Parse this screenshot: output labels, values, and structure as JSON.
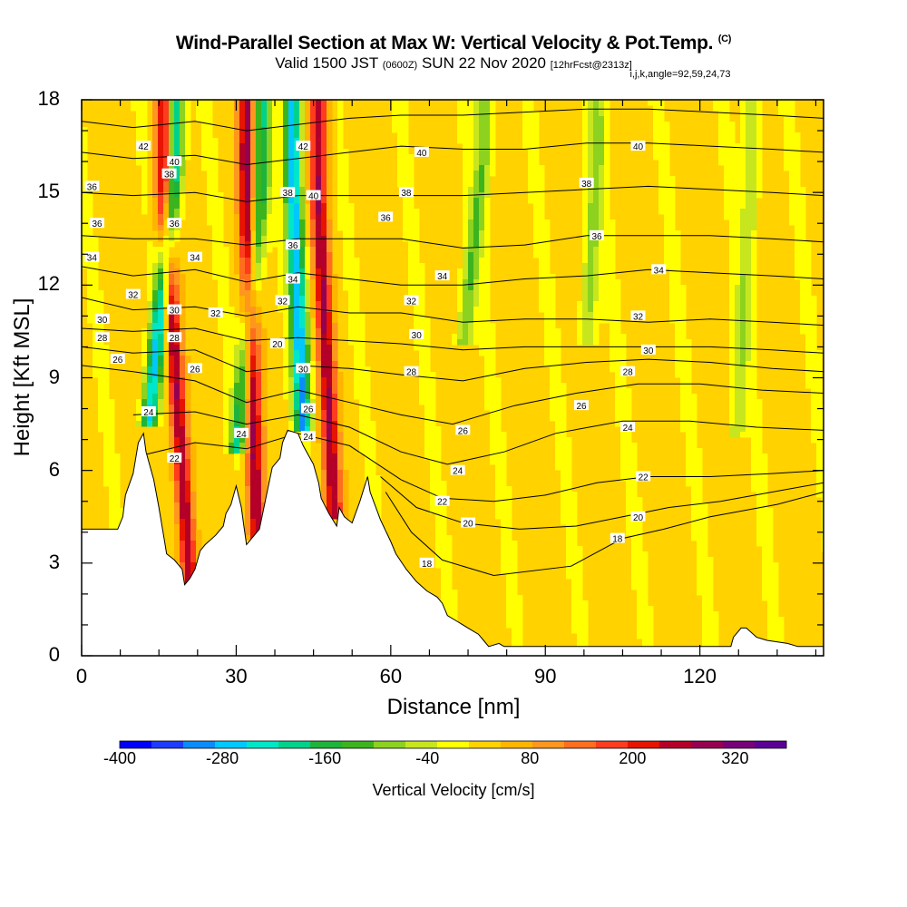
{
  "header": {
    "title": "Wind-Parallel Section at Max W: Vertical Velocity & Pot.Temp.",
    "title_mark": "(C)",
    "valid_prefix": "Valid 1500 JST",
    "valid_utc": "(0600Z)",
    "valid_date": "SUN 22 Nov 2020",
    "forecast": "[12hrFcst@2313z]",
    "indices": "i,j,k,angle=92,59,24,73"
  },
  "chart_data": {
    "type": "heatmap",
    "xlabel": "Distance [nm]",
    "ylabel": "Height [Kft MSL]",
    "xlim": [
      0,
      144
    ],
    "ylim": [
      0,
      18
    ],
    "x_ticks": [
      "0",
      "30",
      "60",
      "90",
      "120"
    ],
    "y_ticks": [
      "0",
      "3",
      "6",
      "9",
      "12",
      "15",
      "18"
    ],
    "colorbar": {
      "label": "Vertical Velocity [cm/s]",
      "tick_labels": [
        "-400",
        "-280",
        "-160",
        "-40",
        "80",
        "200",
        "320"
      ],
      "tick_values": [
        -400,
        -280,
        -160,
        -40,
        80,
        200,
        320
      ],
      "min": -400,
      "max": 380,
      "colors": [
        "#0000ff",
        "#1e3cff",
        "#0a8cff",
        "#00c8ff",
        "#00e6c8",
        "#00d28c",
        "#1eb43c",
        "#3cb41e",
        "#8cd21e",
        "#c8e61e",
        "#ffff00",
        "#ffd200",
        "#ffb400",
        "#ff961e",
        "#ff6e1e",
        "#ff3c1e",
        "#e61400",
        "#b40028",
        "#960050",
        "#780078",
        "#5a0096"
      ]
    },
    "terrain_profile": {
      "distance_nm": [
        0,
        7,
        8,
        8.5,
        10,
        11,
        12,
        12.5,
        14,
        15,
        16,
        16.5,
        18,
        19.5,
        20,
        21,
        22,
        23,
        24,
        26,
        27.5,
        28,
        29,
        30,
        31,
        31.5,
        32,
        34.5,
        35.5,
        36,
        37,
        38.5,
        39,
        40,
        42,
        43,
        45,
        46,
        46.5,
        48,
        49.5,
        50,
        51,
        52.5,
        54,
        55.5,
        56,
        58,
        60,
        61,
        63,
        65,
        67,
        69,
        70,
        71,
        73,
        75,
        77,
        78,
        79,
        81,
        82,
        126,
        126.5,
        128,
        129,
        131,
        133,
        137,
        139,
        141,
        144
      ],
      "height_kft": [
        4.1,
        4.1,
        4.5,
        5.2,
        5.9,
        6.9,
        7.2,
        6.6,
        5.7,
        4.8,
        3.8,
        3.3,
        3.1,
        2.8,
        2.3,
        2.5,
        2.8,
        3.4,
        3.6,
        3.9,
        4.2,
        4.6,
        4.9,
        5.5,
        4.8,
        4.2,
        3.6,
        4.1,
        4.9,
        5.3,
        6.1,
        6.4,
        6.9,
        7.3,
        7.2,
        6.8,
        6.2,
        5.6,
        5.1,
        4.6,
        4.2,
        4.8,
        4.5,
        4.3,
        5.0,
        5.8,
        5.3,
        4.4,
        3.7,
        3.3,
        2.8,
        2.4,
        2.1,
        1.9,
        1.7,
        1.3,
        1.1,
        0.9,
        0.7,
        0.5,
        0.3,
        0.4,
        0.3,
        0.3,
        0.6,
        0.9,
        0.9,
        0.6,
        0.5,
        0.4,
        0.3,
        0.3,
        0.3
      ]
    },
    "updraft_bands": [
      {
        "x_bottom": 21,
        "x_top": 16,
        "y_bottom": 2.4,
        "value": 260
      },
      {
        "x_bottom": 34,
        "x_top": 32,
        "y_bottom": 3.8,
        "value": 260
      },
      {
        "x_bottom": 49,
        "x_top": 46,
        "y_bottom": 4.4,
        "value": 240
      }
    ],
    "downdraft_bands": [
      {
        "x_bottom": 13,
        "x_top": 18,
        "y_bottom": 7.5,
        "value": -280
      },
      {
        "x_bottom": 30,
        "x_top": 35,
        "y_bottom": 6.5,
        "value": -200
      },
      {
        "x_bottom": 43,
        "x_top": 41,
        "y_bottom": 7.3,
        "value": -300
      },
      {
        "x_bottom": 74,
        "x_top": 78,
        "y_bottom": 10.0,
        "value": -120
      },
      {
        "x_bottom": 98,
        "x_top": 100,
        "y_bottom": 10.0,
        "value": -100
      },
      {
        "x_bottom": 127,
        "x_top": 130,
        "y_bottom": 7.0,
        "value": -80
      }
    ],
    "isentropes": [
      {
        "theta": 18,
        "pts": [
          [
            59,
            5.3
          ],
          [
            64,
            4.0
          ],
          [
            70,
            3.1
          ],
          [
            80,
            2.6
          ],
          [
            95,
            2.9
          ],
          [
            105,
            3.8
          ],
          [
            113,
            4.1
          ],
          [
            122,
            4.5
          ],
          [
            135,
            4.9
          ],
          [
            144,
            5.3
          ]
        ]
      },
      {
        "theta": 20,
        "pts": [
          [
            58,
            5.8
          ],
          [
            65,
            4.8
          ],
          [
            74,
            4.3
          ],
          [
            85,
            4.1
          ],
          [
            96,
            4.2
          ],
          [
            105,
            4.5
          ],
          [
            114,
            4.8
          ],
          [
            124,
            5.0
          ],
          [
            134,
            5.3
          ],
          [
            144,
            5.6
          ]
        ]
      },
      {
        "theta": 22,
        "pts": [
          [
            12,
            6.5
          ],
          [
            22,
            6.9
          ],
          [
            32,
            6.7
          ],
          [
            42,
            7.2
          ],
          [
            52,
            6.8
          ],
          [
            62,
            5.7
          ],
          [
            70,
            5.1
          ],
          [
            80,
            5.0
          ],
          [
            90,
            5.2
          ],
          [
            100,
            5.6
          ],
          [
            110,
            5.8
          ],
          [
            122,
            5.8
          ],
          [
            134,
            5.9
          ],
          [
            144,
            6.0
          ]
        ]
      },
      {
        "theta": 24,
        "pts": [
          [
            10,
            7.8
          ],
          [
            22,
            7.9
          ],
          [
            32,
            7.5
          ],
          [
            42,
            7.8
          ],
          [
            52,
            7.4
          ],
          [
            62,
            6.6
          ],
          [
            71,
            6.2
          ],
          [
            82,
            6.6
          ],
          [
            92,
            7.2
          ],
          [
            105,
            7.6
          ],
          [
            118,
            7.6
          ],
          [
            131,
            7.4
          ],
          [
            144,
            7.3
          ]
        ]
      },
      {
        "theta": 26,
        "pts": [
          [
            0,
            9.4
          ],
          [
            10,
            9.2
          ],
          [
            22,
            8.9
          ],
          [
            32,
            8.2
          ],
          [
            42,
            8.6
          ],
          [
            52,
            8.2
          ],
          [
            62,
            7.8
          ],
          [
            72,
            7.5
          ],
          [
            84,
            8.1
          ],
          [
            96,
            8.5
          ],
          [
            108,
            8.8
          ],
          [
            120,
            8.8
          ],
          [
            132,
            8.6
          ],
          [
            144,
            8.5
          ]
        ]
      },
      {
        "theta": 28,
        "pts": [
          [
            0,
            10.0
          ],
          [
            10,
            9.8
          ],
          [
            22,
            9.9
          ],
          [
            32,
            9.2
          ],
          [
            42,
            9.4
          ],
          [
            52,
            9.3
          ],
          [
            62,
            9.1
          ],
          [
            74,
            8.9
          ],
          [
            86,
            9.3
          ],
          [
            98,
            9.5
          ],
          [
            110,
            9.6
          ],
          [
            122,
            9.5
          ],
          [
            134,
            9.3
          ],
          [
            144,
            9.2
          ]
        ]
      },
      {
        "theta": 30,
        "pts": [
          [
            0,
            10.6
          ],
          [
            10,
            10.5
          ],
          [
            22,
            10.6
          ],
          [
            32,
            10.2
          ],
          [
            42,
            10.3
          ],
          [
            52,
            10.2
          ],
          [
            62,
            10.1
          ],
          [
            74,
            9.9
          ],
          [
            86,
            10.0
          ],
          [
            98,
            10.0
          ],
          [
            110,
            10.0
          ],
          [
            122,
            10.0
          ],
          [
            134,
            9.9
          ],
          [
            144,
            9.8
          ]
        ]
      },
      {
        "theta": 32,
        "pts": [
          [
            0,
            11.6
          ],
          [
            10,
            11.2
          ],
          [
            22,
            11.3
          ],
          [
            32,
            11.0
          ],
          [
            42,
            11.3
          ],
          [
            52,
            11.1
          ],
          [
            62,
            11.1
          ],
          [
            74,
            10.8
          ],
          [
            86,
            10.9
          ],
          [
            98,
            10.9
          ],
          [
            110,
            10.8
          ],
          [
            122,
            10.9
          ],
          [
            134,
            10.8
          ],
          [
            144,
            10.7
          ]
        ]
      },
      {
        "theta": 34,
        "pts": [
          [
            0,
            12.6
          ],
          [
            10,
            12.3
          ],
          [
            22,
            12.5
          ],
          [
            32,
            12.1
          ],
          [
            42,
            12.4
          ],
          [
            52,
            12.2
          ],
          [
            62,
            12.0
          ],
          [
            74,
            12.0
          ],
          [
            86,
            12.2
          ],
          [
            98,
            12.3
          ],
          [
            110,
            12.5
          ],
          [
            122,
            12.4
          ],
          [
            134,
            12.3
          ],
          [
            144,
            12.2
          ]
        ]
      },
      {
        "theta": 36,
        "pts": [
          [
            0,
            13.6
          ],
          [
            10,
            13.5
          ],
          [
            22,
            13.5
          ],
          [
            32,
            13.3
          ],
          [
            42,
            13.5
          ],
          [
            52,
            13.5
          ],
          [
            62,
            13.5
          ],
          [
            74,
            13.2
          ],
          [
            86,
            13.3
          ],
          [
            98,
            13.6
          ],
          [
            110,
            13.6
          ],
          [
            122,
            13.6
          ],
          [
            134,
            13.5
          ],
          [
            144,
            13.4
          ]
        ]
      },
      {
        "theta": 38,
        "pts": [
          [
            0,
            15.0
          ],
          [
            10,
            14.9
          ],
          [
            22,
            15.0
          ],
          [
            32,
            14.7
          ],
          [
            42,
            14.9
          ],
          [
            52,
            14.9
          ],
          [
            62,
            14.9
          ],
          [
            74,
            14.9
          ],
          [
            86,
            15.0
          ],
          [
            98,
            15.1
          ],
          [
            110,
            15.2
          ],
          [
            122,
            15.1
          ],
          [
            134,
            15.0
          ],
          [
            144,
            14.9
          ]
        ]
      },
      {
        "theta": 40,
        "pts": [
          [
            0,
            16.3
          ],
          [
            10,
            16.1
          ],
          [
            22,
            16.2
          ],
          [
            32,
            15.9
          ],
          [
            42,
            16.1
          ],
          [
            52,
            16.3
          ],
          [
            62,
            16.5
          ],
          [
            74,
            16.4
          ],
          [
            86,
            16.4
          ],
          [
            98,
            16.6
          ],
          [
            110,
            16.6
          ],
          [
            122,
            16.5
          ],
          [
            134,
            16.4
          ],
          [
            144,
            16.3
          ]
        ]
      },
      {
        "theta": 42,
        "pts": [
          [
            0,
            17.3
          ],
          [
            10,
            17.1
          ],
          [
            22,
            17.3
          ],
          [
            32,
            17.0
          ],
          [
            42,
            17.2
          ],
          [
            52,
            17.4
          ],
          [
            62,
            17.5
          ],
          [
            74,
            17.5
          ],
          [
            86,
            17.6
          ],
          [
            98,
            17.7
          ],
          [
            110,
            17.7
          ],
          [
            122,
            17.6
          ],
          [
            134,
            17.5
          ],
          [
            144,
            17.4
          ]
        ]
      }
    ],
    "contour_labels": [
      {
        "text": "42",
        "x": 12,
        "y": 16.5
      },
      {
        "text": "40",
        "x": 18,
        "y": 16.0
      },
      {
        "text": "38",
        "x": 17,
        "y": 15.6
      },
      {
        "text": "36",
        "x": 2,
        "y": 15.2
      },
      {
        "text": "36",
        "x": 18,
        "y": 14.0
      },
      {
        "text": "36",
        "x": 3,
        "y": 14.0
      },
      {
        "text": "34",
        "x": 2,
        "y": 12.9
      },
      {
        "text": "34",
        "x": 22,
        "y": 12.9
      },
      {
        "text": "32",
        "x": 10,
        "y": 11.7
      },
      {
        "text": "32",
        "x": 26,
        "y": 11.1
      },
      {
        "text": "30",
        "x": 18,
        "y": 11.2
      },
      {
        "text": "30",
        "x": 4,
        "y": 10.9
      },
      {
        "text": "28",
        "x": 18,
        "y": 10.3
      },
      {
        "text": "28",
        "x": 4,
        "y": 10.3
      },
      {
        "text": "26",
        "x": 7,
        "y": 9.6
      },
      {
        "text": "26",
        "x": 22,
        "y": 9.3
      },
      {
        "text": "24",
        "x": 13,
        "y": 7.9
      },
      {
        "text": "22",
        "x": 18,
        "y": 6.4
      },
      {
        "text": "24",
        "x": 31,
        "y": 7.2
      },
      {
        "text": "20",
        "x": 38,
        "y": 10.1
      },
      {
        "text": "32",
        "x": 39,
        "y": 11.5
      },
      {
        "text": "34",
        "x": 41,
        "y": 12.2
      },
      {
        "text": "36",
        "x": 41,
        "y": 13.3
      },
      {
        "text": "38",
        "x": 40,
        "y": 15.0
      },
      {
        "text": "42",
        "x": 43,
        "y": 16.5
      },
      {
        "text": "40",
        "x": 45,
        "y": 14.9
      },
      {
        "text": "30",
        "x": 43,
        "y": 9.3
      },
      {
        "text": "26",
        "x": 44,
        "y": 8.0
      },
      {
        "text": "24",
        "x": 44,
        "y": 7.1
      },
      {
        "text": "36",
        "x": 59,
        "y": 14.2
      },
      {
        "text": "38",
        "x": 63,
        "y": 15.0
      },
      {
        "text": "40",
        "x": 66,
        "y": 16.3
      },
      {
        "text": "34",
        "x": 70,
        "y": 12.3
      },
      {
        "text": "32",
        "x": 64,
        "y": 11.5
      },
      {
        "text": "30",
        "x": 65,
        "y": 10.4
      },
      {
        "text": "28",
        "x": 64,
        "y": 9.2
      },
      {
        "text": "26",
        "x": 74,
        "y": 7.3
      },
      {
        "text": "24",
        "x": 73,
        "y": 6.0
      },
      {
        "text": "22",
        "x": 70,
        "y": 5.0
      },
      {
        "text": "20",
        "x": 75,
        "y": 4.3
      },
      {
        "text": "18",
        "x": 67,
        "y": 3.0
      },
      {
        "text": "40",
        "x": 108,
        "y": 16.5
      },
      {
        "text": "38",
        "x": 98,
        "y": 15.3
      },
      {
        "text": "36",
        "x": 100,
        "y": 13.6
      },
      {
        "text": "34",
        "x": 112,
        "y": 12.5
      },
      {
        "text": "32",
        "x": 108,
        "y": 11.0
      },
      {
        "text": "30",
        "x": 110,
        "y": 9.9
      },
      {
        "text": "28",
        "x": 106,
        "y": 9.2
      },
      {
        "text": "26",
        "x": 97,
        "y": 8.1
      },
      {
        "text": "24",
        "x": 106,
        "y": 7.4
      },
      {
        "text": "22",
        "x": 109,
        "y": 5.8
      },
      {
        "text": "20",
        "x": 108,
        "y": 4.5
      },
      {
        "text": "18",
        "x": 104,
        "y": 3.8
      }
    ]
  }
}
